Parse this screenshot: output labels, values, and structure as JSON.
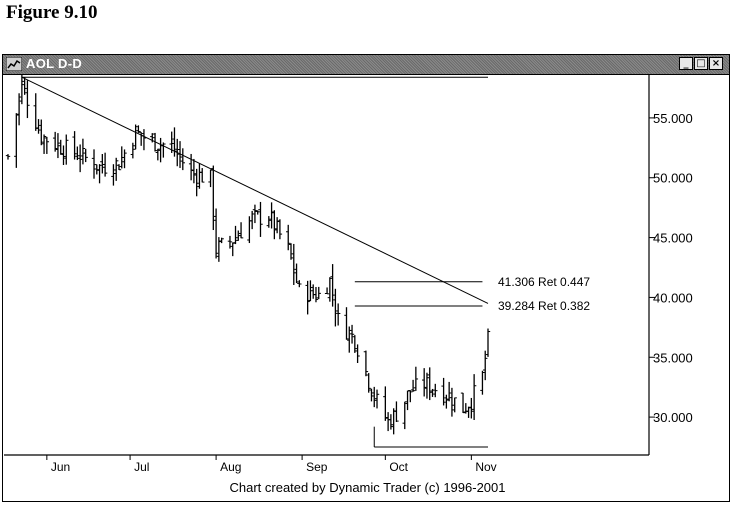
{
  "figure_title": "Figure 9.10",
  "window": {
    "title": "AOL D-D",
    "buttons": [
      "minimize",
      "maximize",
      "close"
    ]
  },
  "footer_text": "Chart created by Dynamic Trader (c) 1996-2001",
  "chart_data": {
    "type": "ohlc",
    "title": "AOL D-D",
    "ylim": [
      27.0,
      58.5
    ],
    "yticks": [
      {
        "value": 55.0,
        "label": "55.000"
      },
      {
        "value": 50.0,
        "label": "50.000"
      },
      {
        "value": 45.0,
        "label": "45.000"
      },
      {
        "value": 40.0,
        "label": "40.000"
      },
      {
        "value": 35.0,
        "label": "35.000"
      },
      {
        "value": 30.0,
        "label": "30.000"
      }
    ],
    "xticks": [
      "Jun",
      "Jul",
      "Aug",
      "Sep",
      "Oct",
      "Nov"
    ],
    "grid": false,
    "x_start": "2001-05-18",
    "x_end": "2001-11-07",
    "closes": [
      {
        "date": "2001-05-18",
        "close": 51.8
      },
      {
        "date": "2001-05-23",
        "close": 57.8
      },
      {
        "date": "2001-05-30",
        "close": 53.5
      },
      {
        "date": "2001-06-06",
        "close": 52.6
      },
      {
        "date": "2001-06-13",
        "close": 51.9
      },
      {
        "date": "2001-06-20",
        "close": 50.9
      },
      {
        "date": "2001-06-27",
        "close": 51.2
      },
      {
        "date": "2001-07-03",
        "close": 53.8
      },
      {
        "date": "2001-07-09",
        "close": 53.0
      },
      {
        "date": "2001-07-16",
        "close": 52.6
      },
      {
        "date": "2001-07-23",
        "close": 50.4
      },
      {
        "date": "2001-07-30",
        "close": 49.9
      },
      {
        "date": "2001-08-01",
        "close": 44.0
      },
      {
        "date": "2001-08-07",
        "close": 44.8
      },
      {
        "date": "2001-08-14",
        "close": 46.6
      },
      {
        "date": "2001-08-20",
        "close": 46.8
      },
      {
        "date": "2001-08-27",
        "close": 44.0
      },
      {
        "date": "2001-08-31",
        "close": 40.5
      },
      {
        "date": "2001-09-07",
        "close": 40.2
      },
      {
        "date": "2001-09-11",
        "close": 41.4
      },
      {
        "date": "2001-09-14",
        "close": 38.1
      },
      {
        "date": "2001-09-20",
        "close": 36.5
      },
      {
        "date": "2001-09-27",
        "close": 31.7
      },
      {
        "date": "2001-10-02",
        "close": 29.6
      },
      {
        "date": "2001-10-05",
        "close": 30.3
      },
      {
        "date": "2001-10-10",
        "close": 32.2
      },
      {
        "date": "2001-10-15",
        "close": 32.8
      },
      {
        "date": "2001-10-19",
        "close": 32.4
      },
      {
        "date": "2001-10-24",
        "close": 31.8
      },
      {
        "date": "2001-10-29",
        "close": 30.7
      },
      {
        "date": "2001-11-01",
        "close": 31.4
      },
      {
        "date": "2001-11-05",
        "close": 33.4
      },
      {
        "date": "2001-11-07",
        "close": 36.4
      }
    ],
    "annotations": {
      "trendline": {
        "from": {
          "date": "2001-05-23",
          "value": 58.4
        },
        "to": {
          "date": "2001-11-07",
          "value": 39.5
        }
      },
      "top_horizontal": {
        "value": 58.4
      },
      "bottom_horizontal": {
        "value": 27.5
      },
      "retracements": [
        {
          "value": 41.306,
          "label": "41.306 Ret 0.447"
        },
        {
          "value": 39.284,
          "label": "39.284 Ret 0.382"
        }
      ]
    }
  }
}
